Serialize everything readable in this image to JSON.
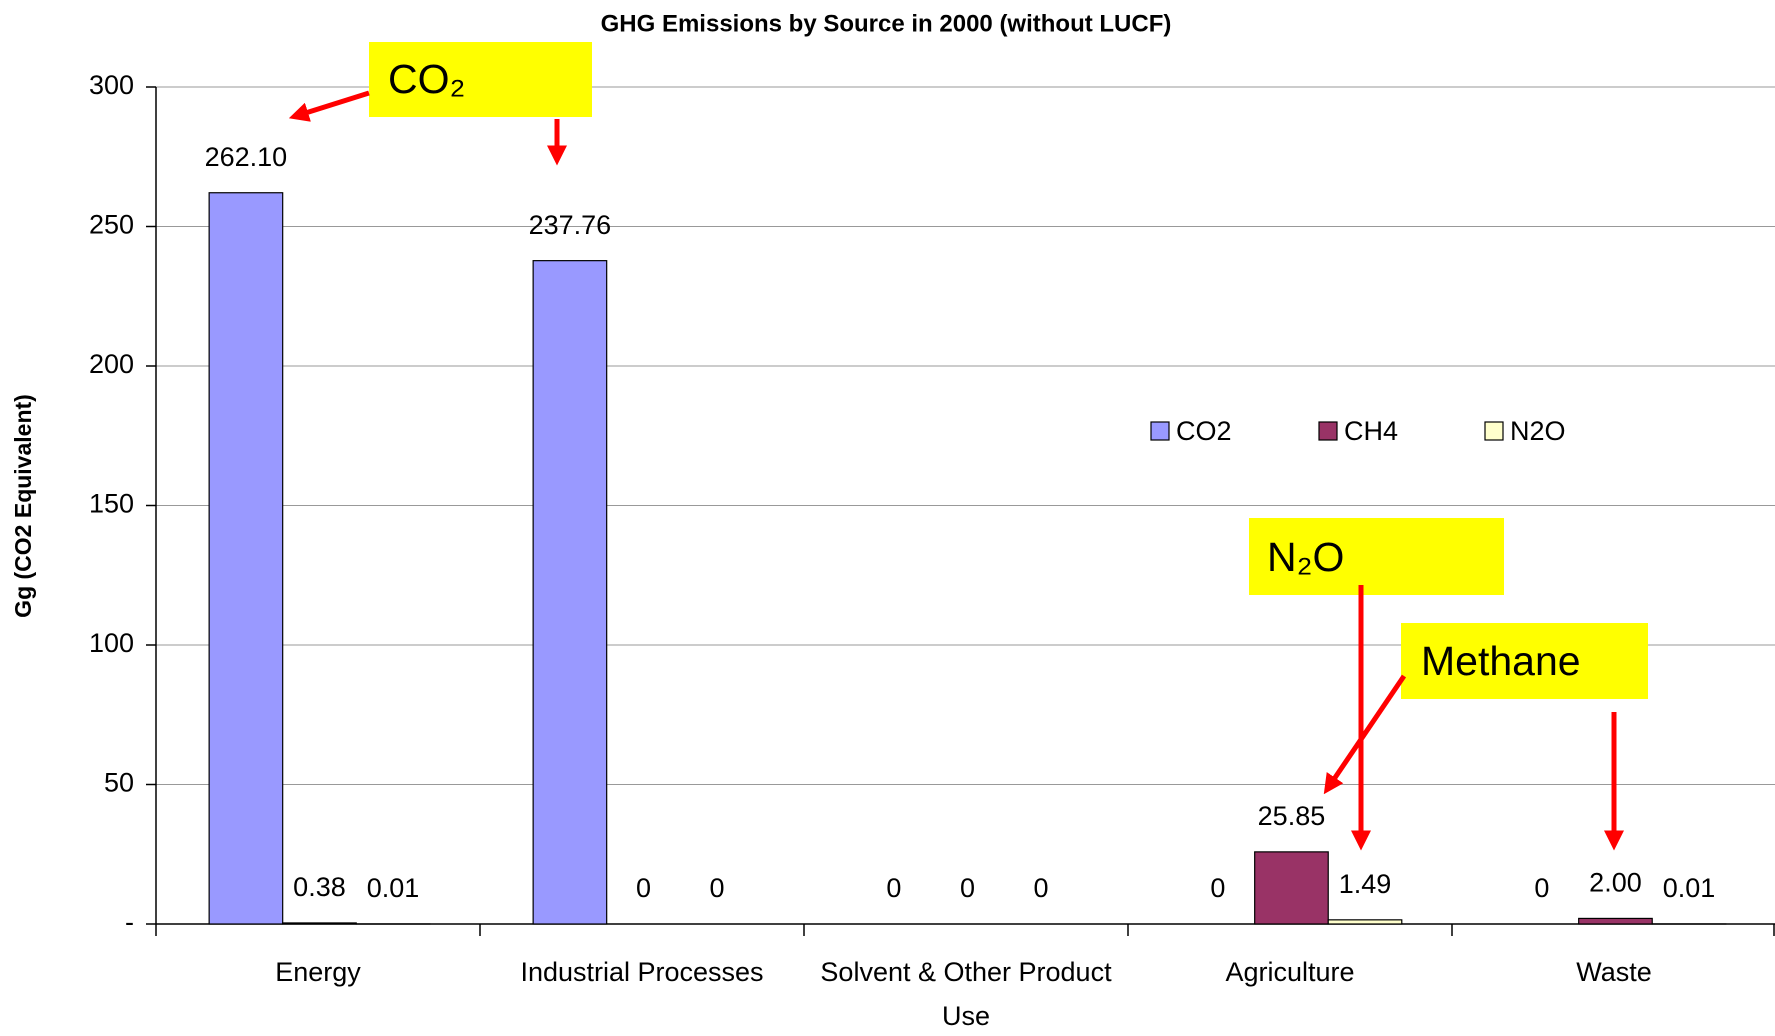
{
  "chart_data": {
    "type": "bar",
    "title": "GHG Emissions by Source in 2000 (without LUCF)",
    "y_label": "Gg (CO2 Equivalent)",
    "categories": [
      "Energy",
      "Industrial Processes",
      "Solvent & Other Product Use",
      "Agriculture",
      "Waste"
    ],
    "series": [
      {
        "name": "CO2",
        "color": "#9999ff",
        "values": [
          262.1,
          237.76,
          0,
          0,
          0
        ],
        "value_labels": [
          "262.10",
          "237.76",
          "0",
          "0",
          "0"
        ]
      },
      {
        "name": "CH4",
        "color": "#993366",
        "values": [
          0.38,
          0,
          0,
          25.85,
          2
        ],
        "value_labels": [
          "0.38",
          "0",
          "0",
          "25.85",
          "2.00"
        ]
      },
      {
        "name": "N2O",
        "color": "#ffffcc",
        "values": [
          0.01,
          0,
          0,
          1.49,
          0.01
        ],
        "value_labels": [
          "0.01",
          "0",
          "0",
          "1.49",
          "0.01"
        ]
      }
    ],
    "ylim": [
      0,
      300
    ],
    "yticks": [
      {
        "value": 0,
        "label": "-"
      },
      50,
      100,
      150,
      200,
      250,
      300
    ],
    "grid": true,
    "legend": "right",
    "annotations": [
      {
        "text": "CO₂"
      },
      {
        "text": "N₂O"
      },
      {
        "text": "Methane"
      }
    ]
  }
}
